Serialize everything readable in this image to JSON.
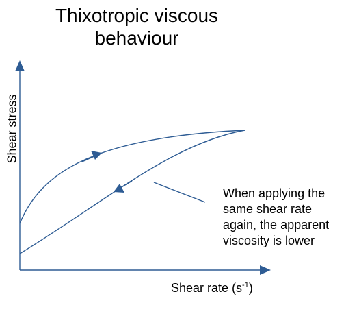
{
  "title": {
    "line1": "Thixotropic viscous",
    "line2": "behaviour"
  },
  "axes": {
    "y_label": "Shear stress",
    "x_label_main": "Shear rate (s",
    "x_label_sup": "-1",
    "x_label_end": ")"
  },
  "annotation": {
    "line1": "When applying the",
    "line2": "same shear rate",
    "line3": "again, the apparent",
    "line4": "viscosity is lower"
  },
  "colors": {
    "accent": "#2e5c94",
    "text": "#000000"
  }
}
